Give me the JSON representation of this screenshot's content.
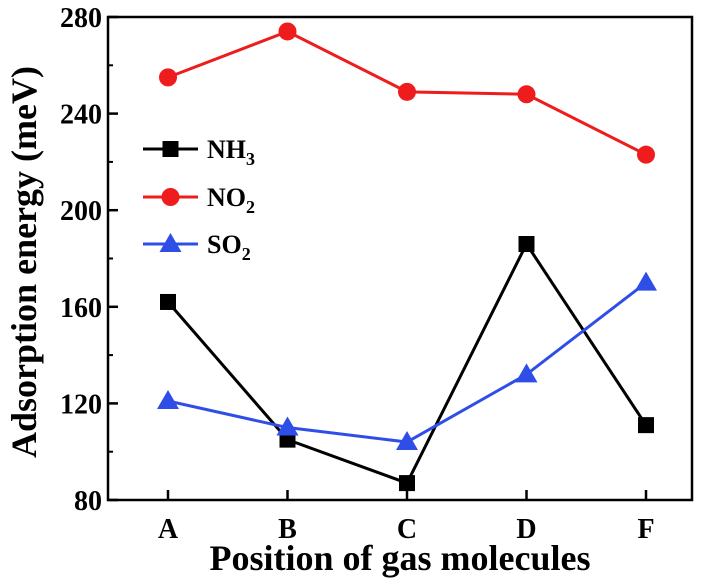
{
  "chart_data": {
    "type": "line",
    "xlabel": "Position of gas molecules",
    "ylabel": "Adsorption energy (meV)",
    "categories": [
      "A",
      "B",
      "C",
      "D",
      "F"
    ],
    "ylim": [
      80,
      280
    ],
    "yticks": [
      80,
      120,
      160,
      200,
      240,
      280
    ],
    "grid": false,
    "legend_position": "left",
    "series": [
      {
        "name": "NH3",
        "name_main": "NH",
        "name_sub": "3",
        "color": "#000000",
        "marker": "square",
        "values": [
          162,
          105,
          87,
          186,
          111
        ]
      },
      {
        "name": "NO2",
        "name_main": "NO",
        "name_sub": "2",
        "color": "#ee1c1c",
        "marker": "circle",
        "values": [
          255,
          274,
          249,
          248,
          223
        ]
      },
      {
        "name": "SO2",
        "name_main": "SO",
        "name_sub": "2",
        "color": "#2f4ee8",
        "marker": "triangle",
        "values": [
          121,
          110,
          104,
          132,
          170
        ]
      }
    ]
  }
}
